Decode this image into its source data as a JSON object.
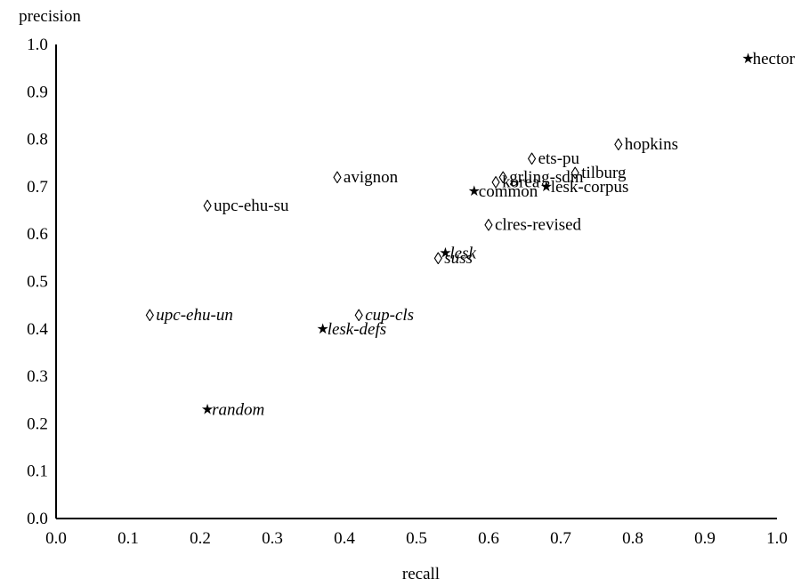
{
  "chart_data": {
    "type": "scatter",
    "title": "",
    "xlabel": "recall",
    "ylabel": "precision",
    "xlim": [
      0.0,
      1.0
    ],
    "ylim": [
      0.0,
      1.0
    ],
    "x_ticks": [
      "0.0",
      "0.1",
      "0.2",
      "0.3",
      "0.4",
      "0.5",
      "0.6",
      "0.7",
      "0.8",
      "0.9",
      "1.0"
    ],
    "y_ticks": [
      "0.0",
      "0.1",
      "0.2",
      "0.3",
      "0.4",
      "0.5",
      "0.6",
      "0.7",
      "0.8",
      "0.9",
      "1.0"
    ],
    "grid": false,
    "legend": "none",
    "markers": {
      "diamond": "◊",
      "star": "★"
    },
    "points": [
      {
        "label": "hector",
        "x": 0.96,
        "y": 0.97,
        "marker": "star",
        "italic": false
      },
      {
        "label": "hopkins",
        "x": 0.78,
        "y": 0.79,
        "marker": "diamond",
        "italic": false
      },
      {
        "label": "ets-pu",
        "x": 0.66,
        "y": 0.76,
        "marker": "diamond",
        "italic": false
      },
      {
        "label": "tilburg",
        "x": 0.72,
        "y": 0.73,
        "marker": "diamond",
        "italic": false
      },
      {
        "label": "grling-sdm",
        "x": 0.62,
        "y": 0.72,
        "marker": "diamond",
        "italic": false
      },
      {
        "label": "korea",
        "x": 0.61,
        "y": 0.71,
        "marker": "diamond",
        "italic": false
      },
      {
        "label": "lesk-corpus",
        "x": 0.68,
        "y": 0.7,
        "marker": "star",
        "italic": false
      },
      {
        "label": "common",
        "x": 0.58,
        "y": 0.69,
        "marker": "star",
        "italic": false
      },
      {
        "label": "avignon",
        "x": 0.39,
        "y": 0.72,
        "marker": "diamond",
        "italic": false
      },
      {
        "label": "upc-ehu-su",
        "x": 0.21,
        "y": 0.66,
        "marker": "diamond",
        "italic": false
      },
      {
        "label": "clres-revised",
        "x": 0.6,
        "y": 0.62,
        "marker": "diamond",
        "italic": false
      },
      {
        "label": "lesk",
        "x": 0.54,
        "y": 0.56,
        "marker": "star",
        "italic": true
      },
      {
        "label": "suss",
        "x": 0.53,
        "y": 0.55,
        "marker": "diamond",
        "italic": true
      },
      {
        "label": "upc-ehu-un",
        "x": 0.13,
        "y": 0.43,
        "marker": "diamond",
        "italic": true
      },
      {
        "label": "cup-cls",
        "x": 0.42,
        "y": 0.43,
        "marker": "diamond",
        "italic": true
      },
      {
        "label": "lesk-defs",
        "x": 0.37,
        "y": 0.4,
        "marker": "star",
        "italic": true
      },
      {
        "label": "random",
        "x": 0.21,
        "y": 0.23,
        "marker": "star",
        "italic": true
      }
    ]
  }
}
